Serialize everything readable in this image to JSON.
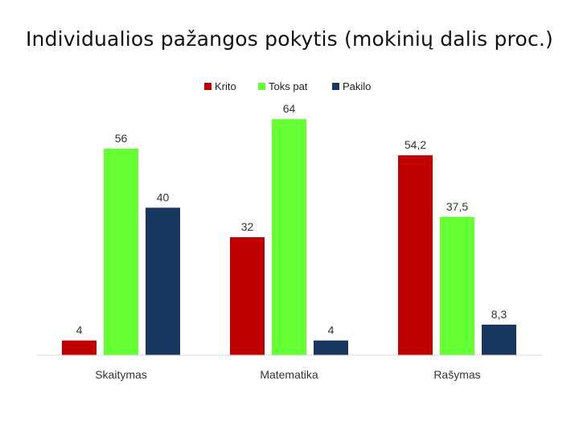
{
  "title": "Individualios pažangos pokytis (mokinių dalis proc.)",
  "chart_data": {
    "type": "bar",
    "title": "Individualios pažangos pokytis (mokinių dalis proc.)",
    "categories": [
      "Skaitymas",
      "Matematika",
      "Rašymas"
    ],
    "series": [
      {
        "name": "Krito",
        "color": "#C00000",
        "values": [
          4,
          32,
          54.2
        ],
        "labels": [
          "4",
          "32",
          "54,2"
        ]
      },
      {
        "name": "Toks pat",
        "color": "#66FF33",
        "values": [
          56,
          64,
          37.5
        ],
        "labels": [
          "56",
          "64",
          "37,5"
        ]
      },
      {
        "name": "Pakilo",
        "color": "#17375E",
        "values": [
          40,
          4,
          8.3
        ],
        "labels": [
          "40",
          "4",
          "8,3"
        ]
      }
    ],
    "ylim": [
      0,
      70
    ],
    "grid": false,
    "legend": "top-center",
    "xlabel": "",
    "ylabel": ""
  }
}
